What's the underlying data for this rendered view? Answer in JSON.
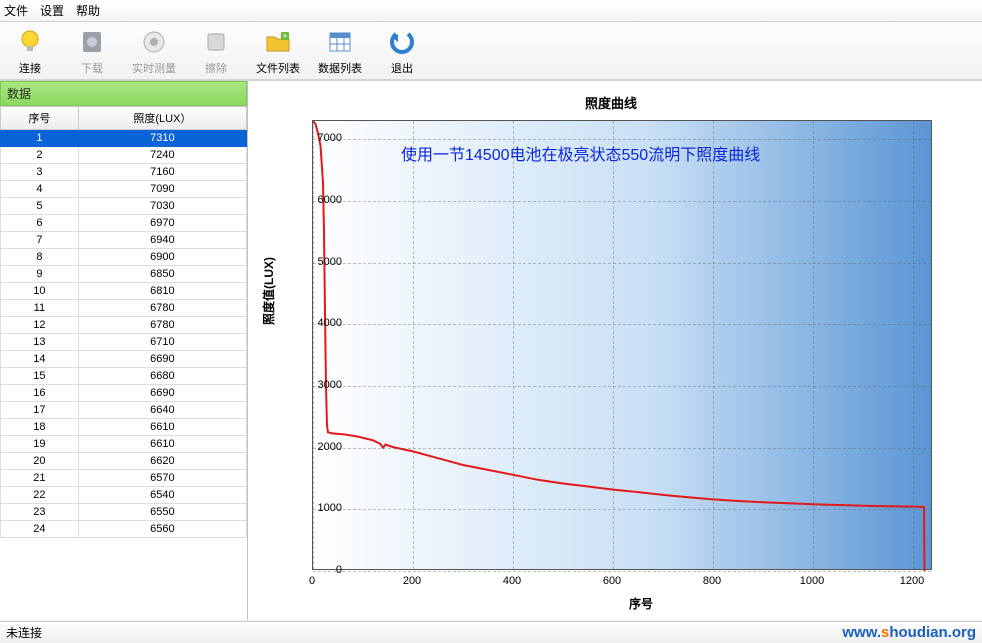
{
  "menu": {
    "file": "文件",
    "settings": "设置",
    "help": "帮助"
  },
  "toolbar": {
    "connect": "连接",
    "download": "下载",
    "realtime": "实时测量",
    "clear": "擦除",
    "filelist": "文件列表",
    "datalist": "数据列表",
    "exit": "退出"
  },
  "left": {
    "header": "数据",
    "columns": {
      "index": "序号",
      "lux": "照度(LUX）"
    },
    "rows": [
      {
        "idx": 1,
        "lux": 7310
      },
      {
        "idx": 2,
        "lux": 7240
      },
      {
        "idx": 3,
        "lux": 7160
      },
      {
        "idx": 4,
        "lux": 7090
      },
      {
        "idx": 5,
        "lux": 7030
      },
      {
        "idx": 6,
        "lux": 6970
      },
      {
        "idx": 7,
        "lux": 6940
      },
      {
        "idx": 8,
        "lux": 6900
      },
      {
        "idx": 9,
        "lux": 6850
      },
      {
        "idx": 10,
        "lux": 6810
      },
      {
        "idx": 11,
        "lux": 6780
      },
      {
        "idx": 12,
        "lux": 6780
      },
      {
        "idx": 13,
        "lux": 6710
      },
      {
        "idx": 14,
        "lux": 6690
      },
      {
        "idx": 15,
        "lux": 6680
      },
      {
        "idx": 16,
        "lux": 6690
      },
      {
        "idx": 17,
        "lux": 6640
      },
      {
        "idx": 18,
        "lux": 6610
      },
      {
        "idx": 19,
        "lux": 6610
      },
      {
        "idx": 20,
        "lux": 6620
      },
      {
        "idx": 21,
        "lux": 6570
      },
      {
        "idx": 22,
        "lux": 6540
      },
      {
        "idx": 23,
        "lux": 6550
      },
      {
        "idx": 24,
        "lux": 6560
      }
    ],
    "selected_row": 0
  },
  "chart": {
    "title": "照度曲线",
    "annotation": "使用一节14500电池在极亮状态550流明下照度曲线",
    "annotation_color": "#0b26da",
    "annotation_fontsize": 16,
    "xlabel": "序号",
    "ylabel": "照度值(LUX)",
    "label_fontsize": 12,
    "xlim": [
      0,
      1240
    ],
    "ylim": [
      0,
      7300
    ],
    "xtick_step": 200,
    "ytick_step": 1000,
    "xticks": [
      0,
      200,
      400,
      600,
      800,
      1000,
      1200
    ],
    "yticks": [
      0,
      1000,
      2000,
      3000,
      4000,
      5000,
      6000,
      7000
    ],
    "bg_gradient_from": "#ffffff",
    "bg_gradient_to": "#5a96d4",
    "grid_color": "#9a9a9a",
    "line_color": "#e31818",
    "line_width": 2,
    "type": "line",
    "series": [
      {
        "x": 0,
        "y": 7300
      },
      {
        "x": 5,
        "y": 7250
      },
      {
        "x": 10,
        "y": 7100
      },
      {
        "x": 15,
        "y": 6900
      },
      {
        "x": 20,
        "y": 6300
      },
      {
        "x": 22,
        "y": 5500
      },
      {
        "x": 24,
        "y": 4200
      },
      {
        "x": 26,
        "y": 3000
      },
      {
        "x": 28,
        "y": 2350
      },
      {
        "x": 30,
        "y": 2250
      },
      {
        "x": 40,
        "y": 2230
      },
      {
        "x": 60,
        "y": 2220
      },
      {
        "x": 90,
        "y": 2180
      },
      {
        "x": 120,
        "y": 2120
      },
      {
        "x": 135,
        "y": 2060
      },
      {
        "x": 140,
        "y": 2000
      },
      {
        "x": 145,
        "y": 2050
      },
      {
        "x": 160,
        "y": 2010
      },
      {
        "x": 200,
        "y": 1940
      },
      {
        "x": 250,
        "y": 1830
      },
      {
        "x": 300,
        "y": 1720
      },
      {
        "x": 350,
        "y": 1640
      },
      {
        "x": 400,
        "y": 1560
      },
      {
        "x": 450,
        "y": 1480
      },
      {
        "x": 500,
        "y": 1420
      },
      {
        "x": 550,
        "y": 1370
      },
      {
        "x": 600,
        "y": 1320
      },
      {
        "x": 650,
        "y": 1280
      },
      {
        "x": 700,
        "y": 1235
      },
      {
        "x": 750,
        "y": 1195
      },
      {
        "x": 800,
        "y": 1162
      },
      {
        "x": 850,
        "y": 1135
      },
      {
        "x": 900,
        "y": 1115
      },
      {
        "x": 950,
        "y": 1098
      },
      {
        "x": 1000,
        "y": 1083
      },
      {
        "x": 1050,
        "y": 1070
      },
      {
        "x": 1100,
        "y": 1060
      },
      {
        "x": 1150,
        "y": 1050
      },
      {
        "x": 1200,
        "y": 1045
      },
      {
        "x": 1222,
        "y": 1040
      },
      {
        "x": 1223,
        "y": 0
      }
    ]
  },
  "status": {
    "text": "未连接"
  },
  "watermark": {
    "prefix": "www.",
    "accent": "s",
    "rest": "houdian.org"
  }
}
